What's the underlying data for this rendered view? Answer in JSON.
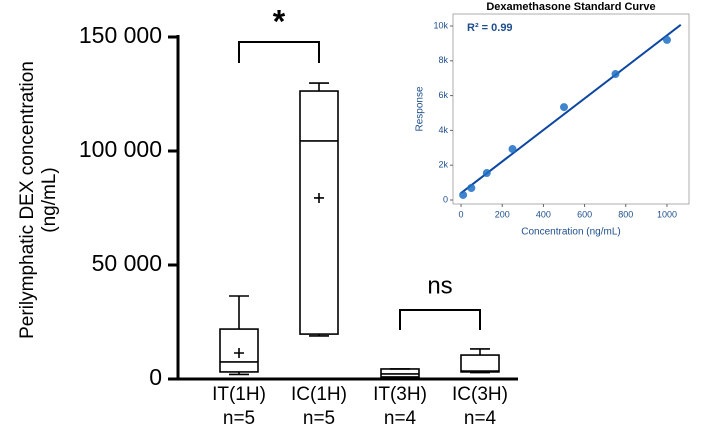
{
  "chart_data": [
    {
      "type": "box",
      "y_label_lines": [
        "Perilymphatic DEX concentration",
        "(ng/mL)"
      ],
      "categories": [
        "IT(1H)",
        "IC(1H)",
        "IT(3H)",
        "IC(3H)"
      ],
      "n_labels": [
        "n=5",
        "n=5",
        "n=4",
        "n=4"
      ],
      "boxes": [
        {
          "min": 2000,
          "q1": 3100,
          "median": 7500,
          "q3": 21900,
          "max": 36400,
          "mean": 11400
        },
        {
          "min": 18900,
          "q1": 19700,
          "median": 104400,
          "q3": 126300,
          "max": 129800,
          "mean": 79400
        },
        {
          "min": 500,
          "q1": 900,
          "median": 2200,
          "q3": 4400,
          "max": 4400,
          "mean": null
        },
        {
          "min": 2800,
          "q1": 3100,
          "median": 3500,
          "q3": 10500,
          "max": 13200,
          "mean": null
        }
      ],
      "annotations": [
        {
          "text": "*"
        },
        {
          "text": "ns"
        }
      ],
      "color": "#000000",
      "ylim": [
        0,
        150000
      ],
      "yticks": [
        {
          "value": 0,
          "label": "0"
        },
        {
          "value": 50000,
          "label": "50 000"
        },
        {
          "value": 100000,
          "label": "100 000"
        },
        {
          "value": 150000,
          "label": "150 000"
        }
      ]
    },
    {
      "type": "scatter",
      "title": "Dexamethasone Standard Curve",
      "x_label": "Concentration (ng/mL)",
      "y_label": "Response",
      "annotation": "R² = 0.99",
      "x": [
        10,
        50,
        125,
        250,
        500,
        750,
        1000
      ],
      "values": [
        290,
        690,
        1550,
        2930,
        5340,
        7240,
        9200
      ],
      "fit": {
        "slope": 9.06,
        "intercept": 400
      },
      "point_color": "#1f6fc4",
      "line_color": "#0d47a1",
      "xlim": [
        -39,
        1107
      ],
      "ylim": [
        -230,
        10690
      ],
      "xticks": [
        0,
        200,
        400,
        600,
        800,
        1000
      ],
      "yticks": [
        {
          "value": 0,
          "label": "0"
        },
        {
          "value": 2000,
          "label": "2k"
        },
        {
          "value": 4000,
          "label": "4k"
        },
        {
          "value": 6000,
          "label": "6k"
        },
        {
          "value": 8000,
          "label": "8k"
        },
        {
          "value": 10000,
          "label": "10k"
        }
      ]
    }
  ]
}
